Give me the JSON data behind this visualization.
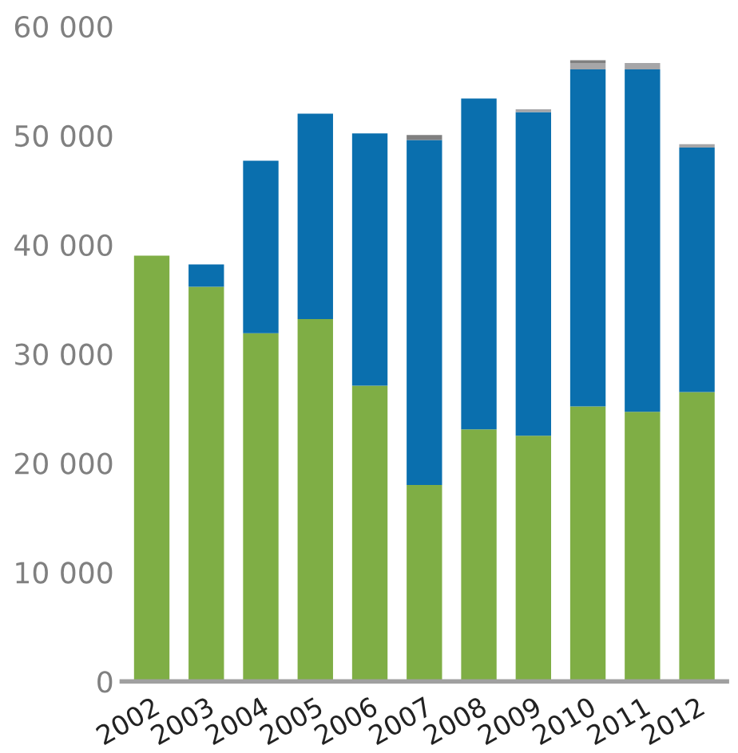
{
  "chart_data": {
    "type": "bar",
    "stacked": true,
    "categories": [
      "2002",
      "2003",
      "2004",
      "2005",
      "2006",
      "2007",
      "2008",
      "2009",
      "2010",
      "2011",
      "2012"
    ],
    "series": [
      {
        "color": "#7fae45",
        "values": [
          39000,
          36150,
          31900,
          33200,
          27100,
          18000,
          23100,
          22500,
          25200,
          24700,
          26500
        ]
      },
      {
        "color": "#0a6fae",
        "values": [
          0,
          2050,
          15800,
          18800,
          23100,
          31600,
          30300,
          29650,
          30850,
          31350,
          22400
        ]
      },
      {
        "color": "#a6a6a8",
        "values": [
          0,
          0,
          0,
          0,
          0,
          0,
          0,
          250,
          600,
          600,
          300
        ]
      },
      {
        "color": "#808080",
        "values": [
          0,
          0,
          0,
          0,
          0,
          450,
          0,
          0,
          250,
          0,
          0
        ]
      }
    ],
    "ylim": [
      0,
      60000
    ],
    "yticks": [
      {
        "value": 0,
        "label": "0"
      },
      {
        "value": 10000,
        "label": "10 000"
      },
      {
        "value": 20000,
        "label": "20 000"
      },
      {
        "value": 30000,
        "label": "30 000"
      },
      {
        "value": 40000,
        "label": "40 000"
      },
      {
        "value": 50000,
        "label": "50 000"
      },
      {
        "value": 60000,
        "label": "60 000"
      }
    ],
    "grid": false,
    "legend": false
  }
}
